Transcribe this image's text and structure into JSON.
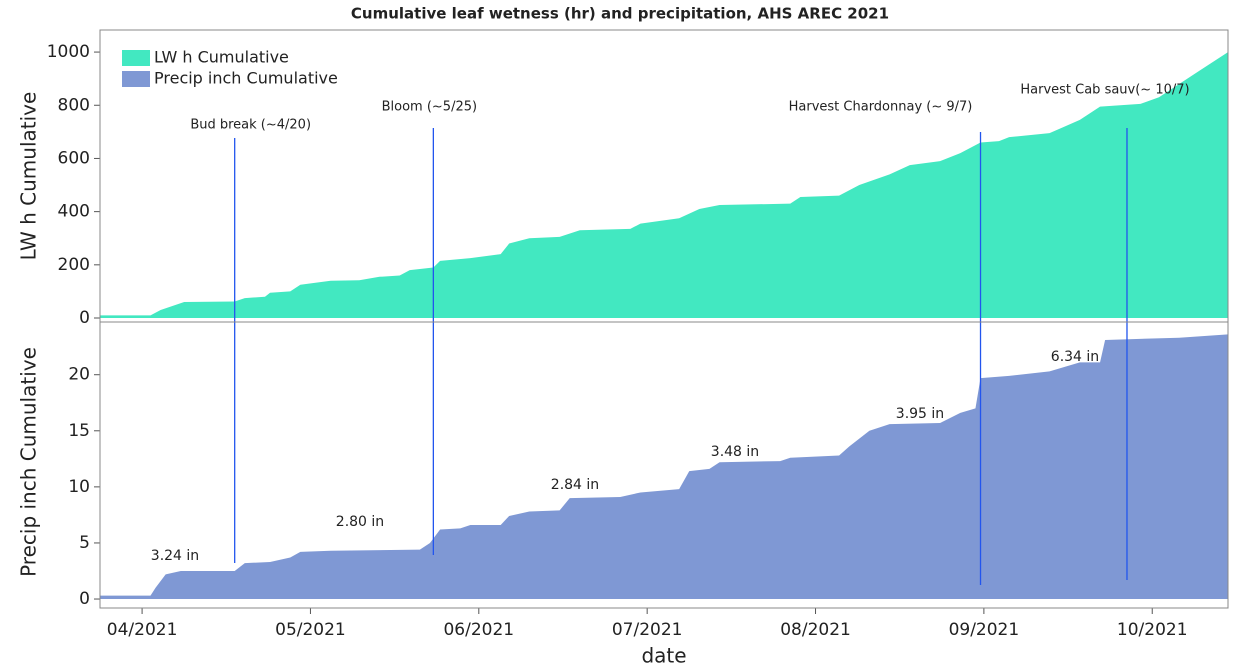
{
  "chart_data": [
    {
      "type": "area",
      "title": "Cumulative leaf wetness (hr)  and precipitation, AHS AREC 2021",
      "ylabel": "LW h Cumulative",
      "xlim": [
        3.75,
        10.45
      ],
      "ylim": [
        -15,
        1083
      ],
      "yticks": [
        0,
        200,
        400,
        600,
        800,
        1000
      ],
      "series": [
        {
          "name": "LW h Cumulative",
          "color": "#42e8c1",
          "x": [
            3.75,
            4.05,
            4.11,
            4.25,
            4.55,
            4.61,
            4.73,
            4.76,
            4.88,
            4.94,
            5.12,
            5.29,
            5.41,
            5.53,
            5.59,
            5.73,
            5.77,
            5.95,
            6.13,
            6.18,
            6.3,
            6.48,
            6.6,
            6.9,
            6.96,
            7.19,
            7.31,
            7.43,
            7.85,
            7.91,
            8.14,
            8.26,
            8.44,
            8.56,
            8.74,
            8.86,
            8.98,
            9.09,
            9.15,
            9.39,
            9.57,
            9.69,
            9.93,
            10.04,
            10.16,
            10.28,
            10.45
          ],
          "values": [
            10,
            10,
            30,
            60,
            62,
            75,
            80,
            95,
            100,
            125,
            140,
            142,
            155,
            160,
            180,
            190,
            215,
            225,
            240,
            280,
            300,
            305,
            330,
            335,
            355,
            375,
            410,
            425,
            430,
            455,
            460,
            500,
            540,
            575,
            590,
            620,
            660,
            665,
            680,
            695,
            745,
            795,
            805,
            830,
            880,
            930,
            1000
          ]
        }
      ],
      "annotations": [
        {
          "text": "Bud break (~4/20)",
          "x": 4.55
        },
        {
          "text": "Bloom (~5/25)",
          "x": 5.73
        },
        {
          "text": "Harvest Chardonnay (~ 9/7)",
          "x": 8.98
        },
        {
          "text": "Harvest Cab sauv(~ 10/7)",
          "x": 9.85
        }
      ]
    },
    {
      "type": "area",
      "ylabel": "Precip inch Cumulative",
      "xlabel": "date",
      "xlim": [
        3.75,
        10.45
      ],
      "xticks": [
        {
          "value": 4,
          "label": "04/2021"
        },
        {
          "value": 5,
          "label": "05/2021"
        },
        {
          "value": 6,
          "label": "06/2021"
        },
        {
          "value": 7,
          "label": "07/2021"
        },
        {
          "value": 8,
          "label": "08/2021"
        },
        {
          "value": 9,
          "label": "09/2021"
        },
        {
          "value": 10,
          "label": "10/2021"
        }
      ],
      "ylim": [
        -0.8,
        24.7
      ],
      "yticks": [
        0,
        5,
        10,
        15,
        20
      ],
      "series": [
        {
          "name": "Precip inch Cumulative",
          "color": "#7f98d4",
          "x": [
            3.75,
            4.05,
            4.08,
            4.14,
            4.23,
            4.55,
            4.61,
            4.76,
            4.88,
            4.94,
            5.12,
            5.65,
            5.71,
            5.77,
            5.89,
            5.95,
            6.13,
            6.18,
            6.3,
            6.48,
            6.54,
            6.84,
            6.96,
            7.19,
            7.25,
            7.37,
            7.43,
            7.79,
            7.85,
            8.14,
            8.2,
            8.32,
            8.44,
            8.74,
            8.86,
            8.95,
            8.98,
            9.15,
            9.39,
            9.57,
            9.69,
            9.72,
            10.16,
            10.45
          ],
          "values": [
            0.3,
            0.3,
            1,
            2.2,
            2.5,
            2.5,
            3.2,
            3.3,
            3.7,
            4.2,
            4.3,
            4.4,
            5,
            6.2,
            6.3,
            6.6,
            6.6,
            7.4,
            7.8,
            7.9,
            9,
            9.1,
            9.5,
            9.8,
            11.4,
            11.6,
            12.2,
            12.3,
            12.6,
            12.8,
            13.6,
            15,
            15.6,
            15.7,
            16.6,
            17,
            19.7,
            19.9,
            20.3,
            21.1,
            21.1,
            23.1,
            23.3,
            23.6
          ]
        }
      ],
      "annotations": [
        "3.24 in",
        "2.80 in",
        "2.84 in",
        "3.48 in",
        "3.95 in",
        "6.34 in"
      ]
    }
  ]
}
